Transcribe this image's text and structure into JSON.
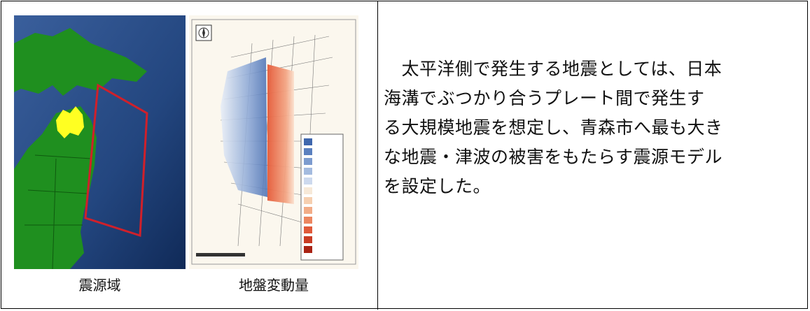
{
  "figure": {
    "left_caption": "震源域",
    "right_caption": "地盤変動量"
  },
  "description": {
    "lines": [
      "　太平洋側で発生する地震としては、日本",
      "海溝でぶつかり合うプレート間で発生す",
      "る大規模地震を想定し、青森市へ最も大き",
      "な地震・津波の被害をもたらす震源モデル",
      "を設定した。"
    ]
  },
  "colors": {
    "ocean": "#2b4f88",
    "land": "#1f8f1f",
    "highlight_aomori": "#ffff22",
    "source_area_outline": "#d0202a",
    "uplift": "#e05a3a",
    "subsidence": "#6f8fc4"
  }
}
